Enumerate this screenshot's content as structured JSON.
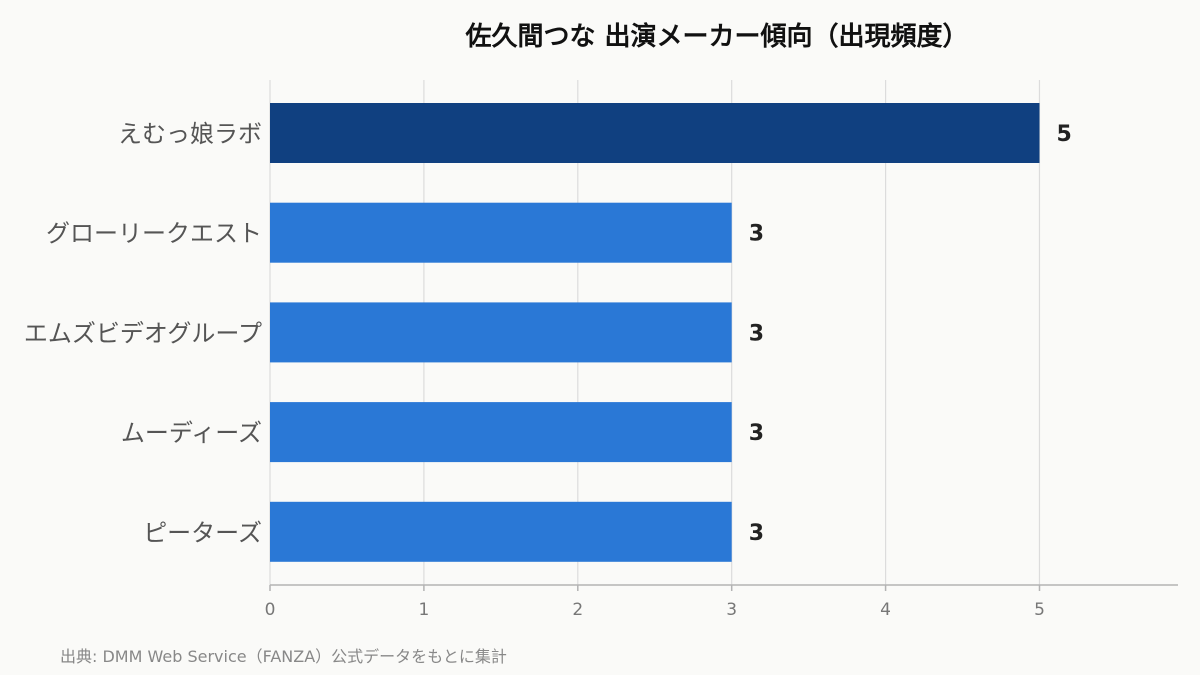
{
  "chart_data": {
    "type": "bar",
    "orientation": "horizontal",
    "title": "佐久間つな 出演メーカー傾向（出現頻度）",
    "categories": [
      "えむっ娘ラボ",
      "グローリークエスト",
      "エムズビデオグループ",
      "ムーディーズ",
      "ピーターズ"
    ],
    "values": [
      5,
      3,
      3,
      3,
      3
    ],
    "xlim": [
      0,
      5.9
    ],
    "xticks": [
      0,
      1,
      2,
      3,
      4,
      5
    ],
    "grid": true,
    "colors": {
      "highlight": "#104080",
      "default": "#2a78d6",
      "grid": "#dcdcdc",
      "axis": "#b3b3b3"
    }
  },
  "footer": {
    "source": "出典: DMM Web Service（FANZA）公式データをもとに集計"
  }
}
